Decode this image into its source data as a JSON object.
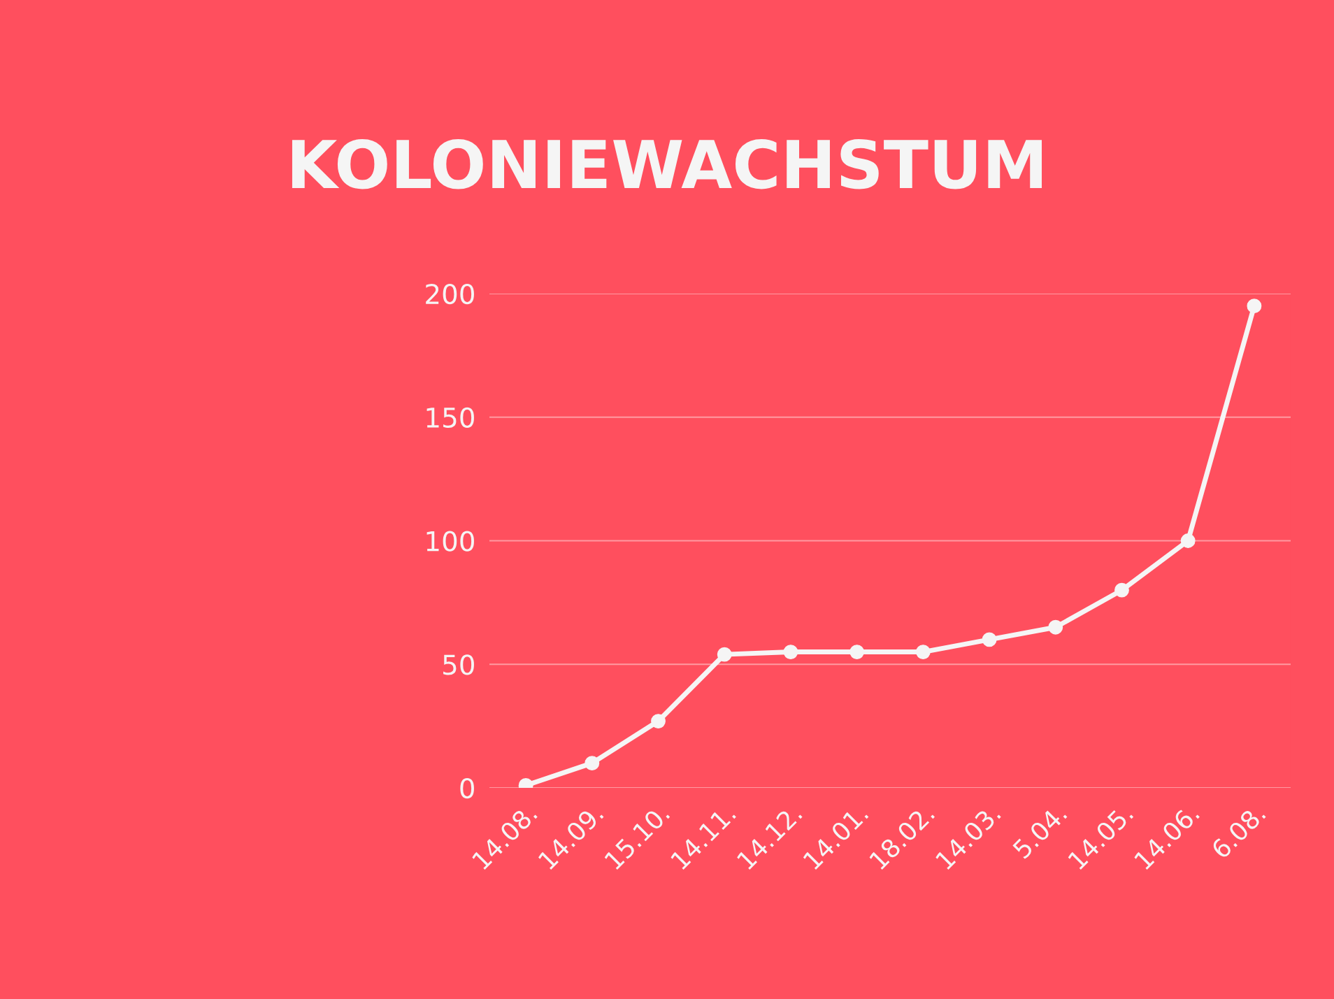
{
  "chart_data": {
    "type": "line",
    "title": "KOLONIEWACHSTUM",
    "categories": [
      "14.08.",
      "14.09.",
      "15.10.",
      "14.11.",
      "14.12.",
      "14.01.",
      "18.02.",
      "14.03.",
      "5.04.",
      "14.05.",
      "14.06.",
      "6.08."
    ],
    "series": [
      {
        "color": "#f5f5f5",
        "values": [
          1,
          10,
          27,
          54,
          55,
          55,
          55,
          60,
          65,
          80,
          100,
          195
        ]
      }
    ],
    "ylim": [
      0,
      200
    ],
    "yticks": [
      0,
      50,
      100,
      150,
      200
    ],
    "grid": "y",
    "marker": "circle",
    "line_style": "solid",
    "legend": false
  }
}
